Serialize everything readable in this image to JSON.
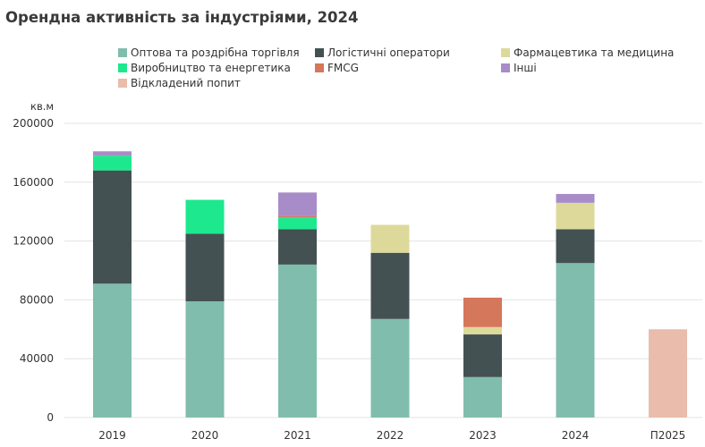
{
  "chart_data": {
    "type": "bar",
    "stacked": true,
    "title": "Орендна активність за індустріями, 2024",
    "ylabel": "кв.м",
    "xlabel": "",
    "ylim": [
      0,
      200000
    ],
    "yticks": [
      0,
      40000,
      80000,
      120000,
      160000,
      200000
    ],
    "ytick_labels": [
      "0",
      "40000",
      "80000",
      "120000",
      "160000",
      "200000"
    ],
    "grid": "horizontal",
    "legend_position": "top",
    "categories": [
      "2019",
      "2020",
      "2021",
      "2022",
      "2023",
      "2024",
      "П2025"
    ],
    "series": [
      {
        "name": "Оптова та роздрібна торгівля",
        "color": "#80bdac",
        "values": [
          91000,
          79000,
          104000,
          67000,
          27500,
          105000,
          0
        ]
      },
      {
        "name": "Логістичні оператори",
        "color": "#435152",
        "values": [
          77000,
          46000,
          24000,
          45000,
          29000,
          23000,
          0
        ]
      },
      {
        "name": "Фармацевтика та медицина",
        "color": "#dcd99b",
        "values": [
          0,
          0,
          0,
          19000,
          5000,
          18000,
          0
        ]
      },
      {
        "name": "Виробництво та енергетика",
        "color": "#1de88e",
        "values": [
          10000,
          23000,
          8000,
          0,
          0,
          0,
          0
        ]
      },
      {
        "name": "FMCG",
        "color": "#d5775a",
        "values": [
          0,
          0,
          1000,
          0,
          20000,
          0,
          0
        ]
      },
      {
        "name": "Інші",
        "color": "#a88cc8",
        "values": [
          3000,
          0,
          16000,
          0,
          0,
          6000,
          0
        ]
      },
      {
        "name": "Відкладений попит",
        "color": "#e9bcab",
        "values": [
          0,
          0,
          0,
          0,
          0,
          0,
          60000
        ]
      }
    ]
  }
}
